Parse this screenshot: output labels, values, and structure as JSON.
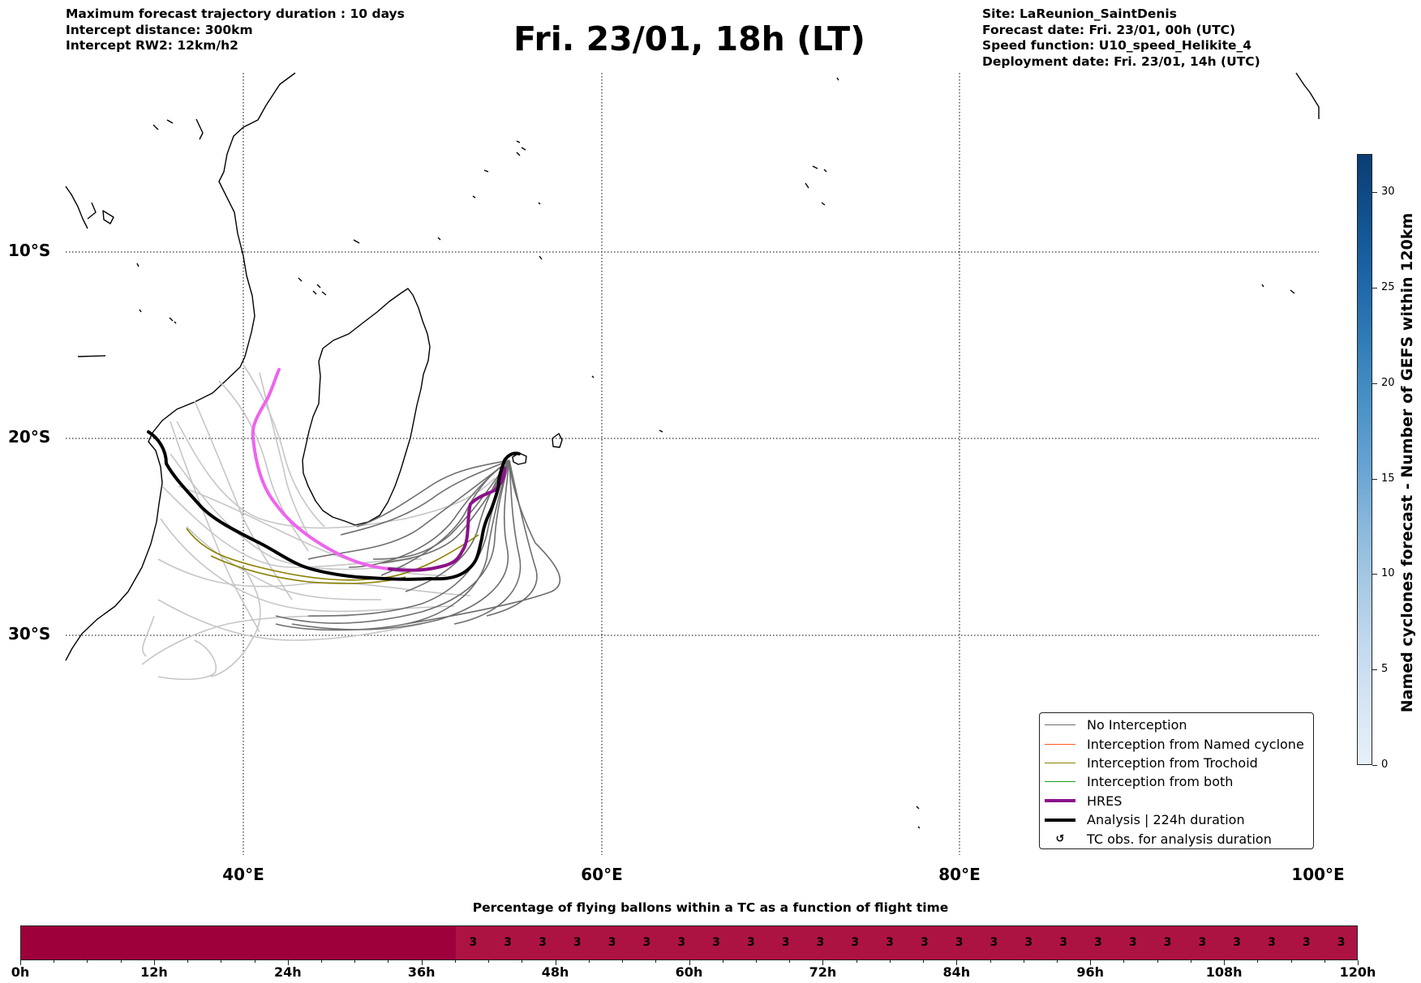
{
  "header": {
    "info_left": [
      "Maximum forecast trajectory duration : 10 days",
      "Intercept distance: 300km",
      "Intercept RW2: 12km/h2"
    ],
    "title": "Fri. 23/01, 18h (LT)",
    "info_right": [
      "Site: LaReunion_SaintDenis",
      "Forecast date: Fri. 23/01, 00h (UTC)",
      "Speed function: U10_speed_Helikite_4",
      "Deployment date: Fri. 23/01, 14h (UTC)"
    ]
  },
  "map": {
    "lat_labels": [
      "10°S",
      "20°S",
      "30°S"
    ],
    "lon_labels": [
      "40°E",
      "60°E",
      "80°E",
      "100°E"
    ],
    "colors": {
      "no_interception": "#6e6e6e",
      "no_interception_light": "#c6c6c6",
      "named_cyclone": "#ff5a1e",
      "trochoid": "#8b8000",
      "both": "#1f9b1f",
      "hres": "#8b128b",
      "hres_early": "#ee64ee",
      "analysis": "#000000"
    }
  },
  "legend": {
    "items": [
      {
        "label": "No Interception",
        "style": "thin-gray"
      },
      {
        "label": "Interception from Named cyclone",
        "style": "thin-orange"
      },
      {
        "label": "Interception from Trochoid",
        "style": "thin-olive"
      },
      {
        "label": "Interception from both",
        "style": "thin-green"
      },
      {
        "label": "HRES",
        "style": "thick-purple"
      },
      {
        "label": "Analysis | 224h duration",
        "style": "thick-black"
      },
      {
        "label": "TC obs. for analysis duration",
        "style": "cyclone-symbol"
      }
    ]
  },
  "colorbar": {
    "title": "Named cyclones forecast - Number of GEFS within 120km",
    "ticks": [
      "0",
      "5",
      "10",
      "15",
      "20",
      "25",
      "30"
    ],
    "range": [
      0,
      32
    ]
  },
  "percentage_bar": {
    "title": "Percentage of flying ballons within a TC as a function of flight time",
    "tick_labels": [
      "0h",
      "12h",
      "24h",
      "36h",
      "48h",
      "60h",
      "72h",
      "84h",
      "96h",
      "108h",
      "120h"
    ],
    "range_hours": [
      0,
      120
    ],
    "zero_until_hour": 39,
    "values": [
      3,
      3,
      3,
      3,
      3,
      3,
      3,
      3,
      3,
      3,
      3,
      3,
      3,
      3,
      3,
      3,
      3,
      3,
      3,
      3,
      3,
      3,
      3,
      3,
      3,
      3
    ],
    "colors": {
      "zero": "#9e003c",
      "nonzero": "#ad1342"
    }
  }
}
